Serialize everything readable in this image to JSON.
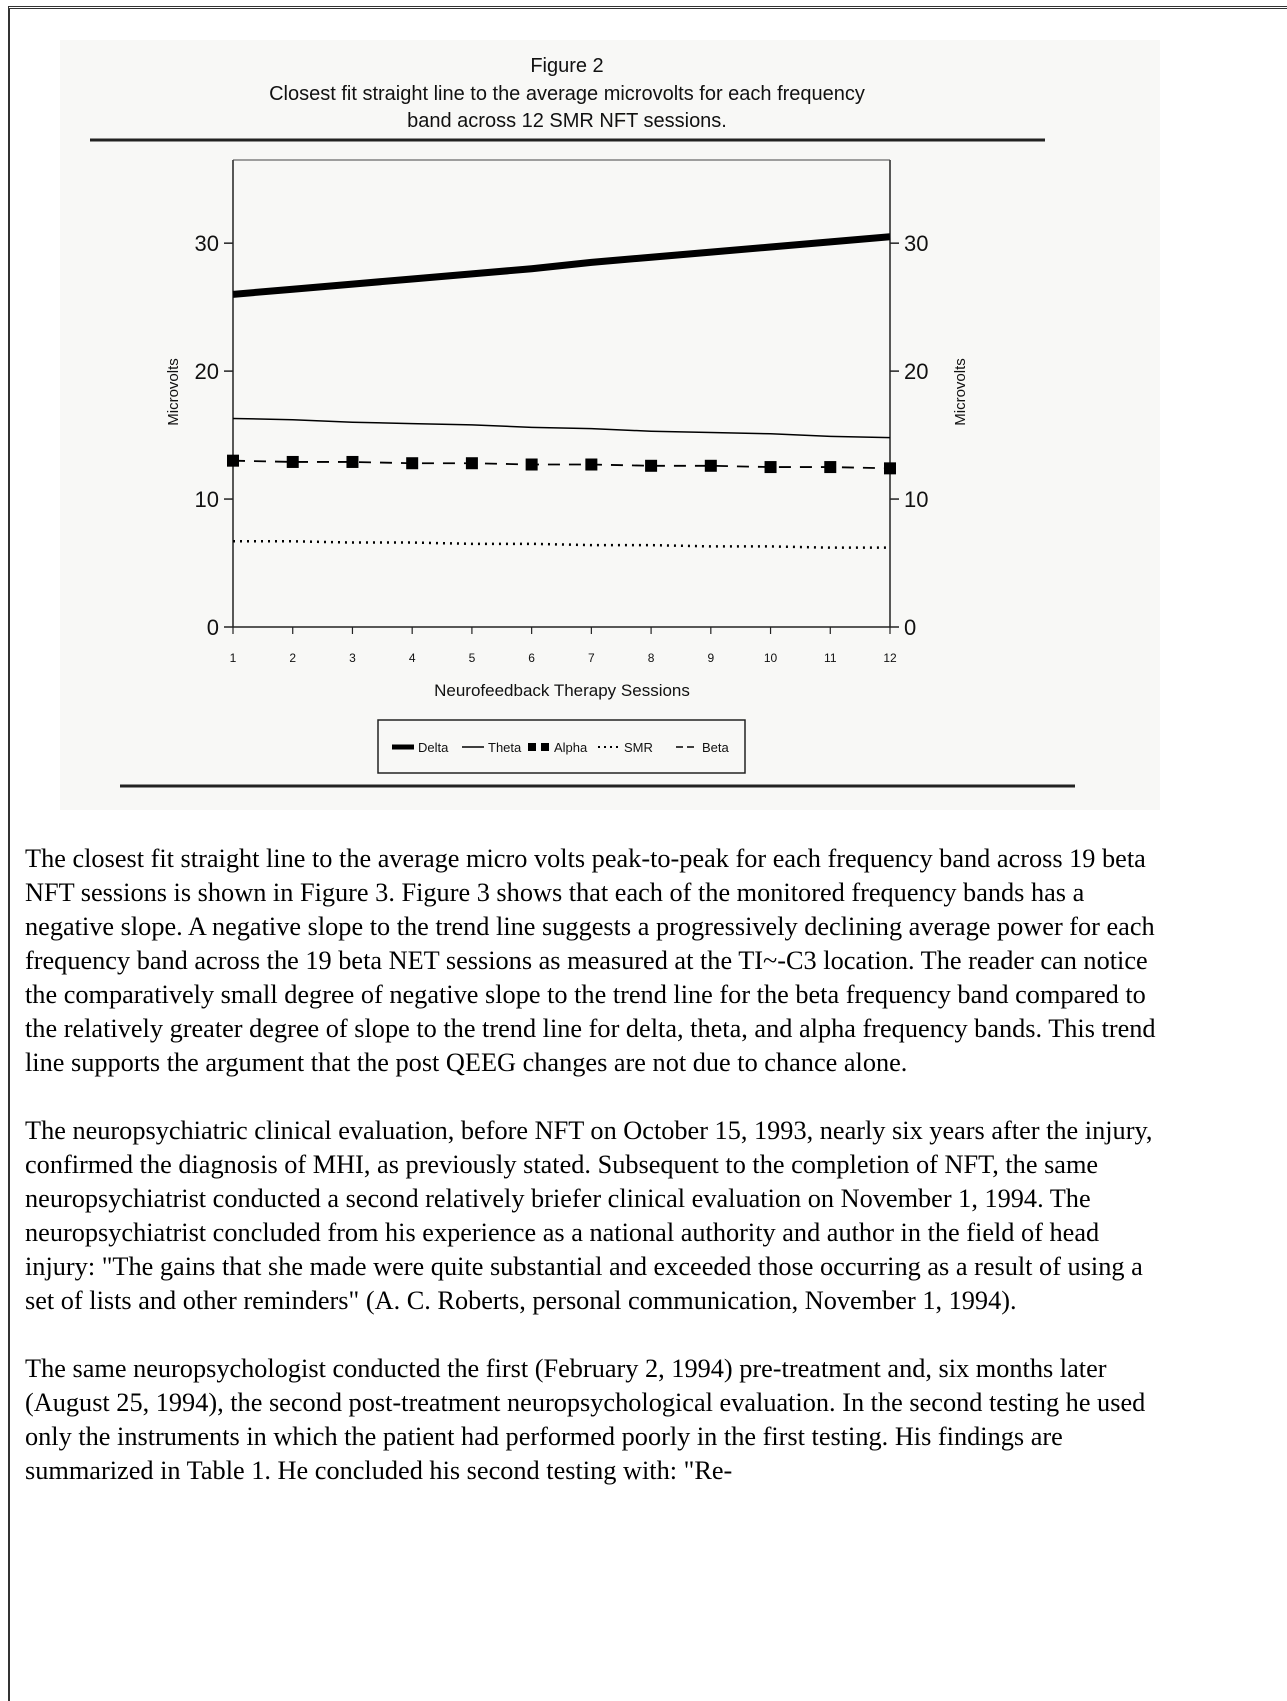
{
  "chart_data": {
    "type": "line",
    "title": "Figure 2",
    "subtitle": [
      "Closest fit straight line to the average microvolts for each frequency",
      "band across 12 SMR NFT sessions."
    ],
    "xlabel": "Neurofeedback Therapy Sessions",
    "ylabel": "Microvolts",
    "y2label": "Microvolts",
    "x": [
      1,
      2,
      3,
      4,
      5,
      6,
      7,
      8,
      9,
      10,
      11,
      12
    ],
    "xlim": [
      1,
      12
    ],
    "xticks": [
      1,
      2,
      3,
      4,
      5,
      6,
      7,
      8,
      9,
      10,
      11,
      12
    ],
    "ylim": [
      0,
      36.5
    ],
    "yticks": [
      0,
      10,
      20,
      30
    ],
    "y2lim": [
      0,
      36.5
    ],
    "y2ticks": [
      0,
      10,
      20,
      30
    ],
    "series": [
      {
        "name": "Delta",
        "color": "#000000",
        "style": "thick",
        "values": [
          26.0,
          26.4,
          26.8,
          27.2,
          27.6,
          28.0,
          28.5,
          28.9,
          29.3,
          29.7,
          30.1,
          30.5
        ]
      },
      {
        "name": "Theta",
        "color": "#000000",
        "style": "thin",
        "values": [
          16.3,
          16.2,
          16.0,
          15.9,
          15.8,
          15.6,
          15.5,
          15.3,
          15.2,
          15.1,
          14.9,
          14.8
        ]
      },
      {
        "name": "Alpha",
        "color": "#000000",
        "style": "squares",
        "values": [
          13.0,
          12.9,
          12.9,
          12.8,
          12.8,
          12.7,
          12.7,
          12.6,
          12.6,
          12.5,
          12.5,
          12.4
        ]
      },
      {
        "name": "SMR",
        "color": "#000000",
        "style": "dotted",
        "values": [
          6.7,
          6.7,
          6.6,
          6.6,
          6.5,
          6.5,
          6.4,
          6.4,
          6.3,
          6.3,
          6.2,
          6.2
        ]
      },
      {
        "name": "Beta",
        "color": "#000000",
        "style": "dashed",
        "values": [
          13.0,
          12.9,
          12.9,
          12.8,
          12.8,
          12.7,
          12.7,
          12.6,
          12.6,
          12.5,
          12.5,
          12.4
        ]
      }
    ]
  },
  "paragraphs": [
    "The closest fit straight line to the average micro volts peak-to-peak for each frequency band across 19 beta NFT sessions is shown in Figure 3. Figure 3 shows that each of the monitored frequency bands has a negative slope. A negative slope to the trend line suggests a progressively declining average power for each frequency band across the 19 beta NET sessions as measured at the TI~-C3 location. The reader can notice the comparatively small degree of negative slope to the trend line for the beta frequency band compared to the relatively greater degree of slope to the trend line for delta, theta, and alpha frequency bands. This trend line supports the argument that the post QEEG changes are not due to chance alone.",
    "The neuropsychiatric clinical evaluation, before NFT on October 15, 1993, nearly six years after the injury, confirmed the diagnosis of MHI, as previously stated. Subsequent to the completion of NFT, the same neuropsychiatrist conducted a second relatively briefer clinical evaluation on November 1, 1994. The neuropsychiatrist concluded from his experience as a national authority and author in the field of head injury: \"The gains that she made were quite substantial and exceeded those occurring as a result of using a set of lists and other reminders\" (A. C. Roberts, personal communication, November 1, 1994).",
    "The same neuropsychologist conducted the first (February 2, 1994) pre-treatment and, six months later (August 25, 1994), the second post-treatment neuropsychological evaluation. In the second testing he used only the instruments in which the patient had performed poorly in the first testing. His findings are summarized in Table 1. He concluded his second testing with: \"Re-"
  ]
}
